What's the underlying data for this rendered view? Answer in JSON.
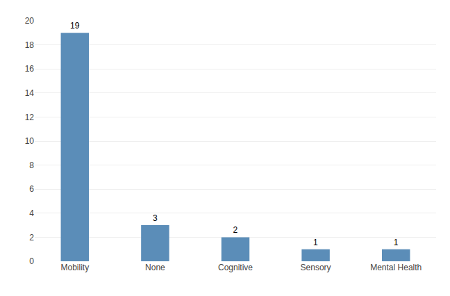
{
  "chart_data": {
    "type": "bar",
    "categories": [
      "Mobility",
      "None",
      "Cognitive",
      "Sensory",
      "Mental Health"
    ],
    "values": [
      19,
      3,
      2,
      1,
      1
    ],
    "color": "#5b8db8",
    "ylim": [
      0,
      20
    ],
    "yticks": [
      0,
      2,
      4,
      6,
      8,
      10,
      12,
      14,
      16,
      18,
      20
    ],
    "grid": true,
    "data_labels": true
  }
}
